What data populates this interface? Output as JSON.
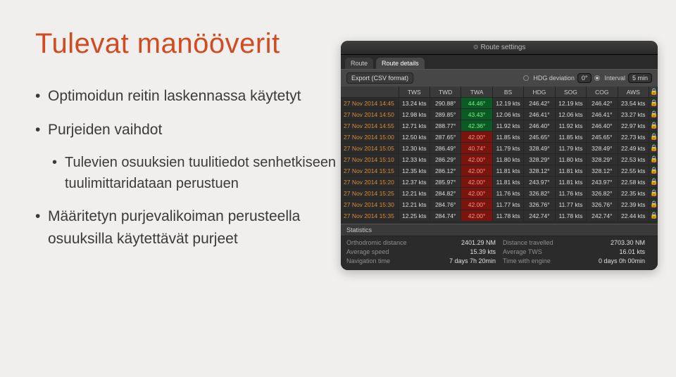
{
  "slide": {
    "title": "Tulevat manööverit",
    "bullets": [
      {
        "text": "Optimoidun reitin laskennassa käytetyt",
        "level": 0
      },
      {
        "text": "Purjeiden vaihdot",
        "level": 0
      },
      {
        "text": "Tulevien osuuksien tuulitiedot senhetkiseen tuulimittaridataan perustuen",
        "level": 1
      },
      {
        "text": "Määritetyn purjevalikoiman perusteella osuuksilla käytettävät purjeet",
        "level": 0
      }
    ]
  },
  "panel": {
    "windowTitle": "Route settings",
    "tabs": [
      "Route",
      "Route details"
    ],
    "activeTab": 1,
    "export_btn": "Export (CSV format)",
    "hdg_label": "HDG deviation",
    "hdg_value": "0°",
    "interval_label": "Interval",
    "interval_value": "5 min",
    "columns": [
      "",
      "TWS",
      "TWD",
      "TWA",
      "BS",
      "HDG",
      "SOG",
      "COG",
      "AWS",
      ""
    ],
    "bs_colors": {
      "green": "#2aa84a",
      "red": "#e03127",
      "bg_green": "#0a5a23",
      "bg_red": "#7a140e"
    },
    "rows": [
      {
        "time": "27 Nov 2014 14:45",
        "tws": "13.24 kts",
        "twd": "290.88°",
        "twa": "44.46°",
        "bs": "12.19 kts",
        "bs_k": "green",
        "hdg": "246.42°",
        "sog": "12.19 kts",
        "cog": "246.42°",
        "aws": "23.54 kts"
      },
      {
        "time": "27 Nov 2014 14:50",
        "tws": "12.98 kts",
        "twd": "289.85°",
        "twa": "43.43°",
        "bs": "12.06 kts",
        "bs_k": "green",
        "hdg": "246.41°",
        "sog": "12.06 kts",
        "cog": "246.41°",
        "aws": "23.27 kts"
      },
      {
        "time": "27 Nov 2014 14:55",
        "tws": "12.71 kts",
        "twd": "288.77°",
        "twa": "42.36°",
        "bs": "11.92 kts",
        "bs_k": "green",
        "hdg": "246.40°",
        "sog": "11.92 kts",
        "cog": "246.40°",
        "aws": "22.97 kts"
      },
      {
        "time": "27 Nov 2014 15:00",
        "tws": "12.50 kts",
        "twd": "287.65°",
        "twa": "42.00°",
        "bs": "11.85 kts",
        "bs_k": "red",
        "hdg": "245.65°",
        "sog": "11.85 kts",
        "cog": "245.65°",
        "aws": "22.73 kts"
      },
      {
        "time": "27 Nov 2014 15:05",
        "tws": "12.30 kts",
        "twd": "286.49°",
        "twa": "40.74°",
        "bs": "11.79 kts",
        "bs_k": "red",
        "hdg": "328.49°",
        "sog": "11.79 kts",
        "cog": "328.49°",
        "aws": "22.49 kts"
      },
      {
        "time": "27 Nov 2014 15:10",
        "tws": "12.33 kts",
        "twd": "286.29°",
        "twa": "42.00°",
        "bs": "11.80 kts",
        "bs_k": "red",
        "hdg": "328.29°",
        "sog": "11.80 kts",
        "cog": "328.29°",
        "aws": "22.53 kts"
      },
      {
        "time": "27 Nov 2014 15:15",
        "tws": "12.35 kts",
        "twd": "286.12°",
        "twa": "42.00°",
        "bs": "11.81 kts",
        "bs_k": "red",
        "hdg": "328.12°",
        "sog": "11.81 kts",
        "cog": "328.12°",
        "aws": "22.55 kts"
      },
      {
        "time": "27 Nov 2014 15:20",
        "tws": "12.37 kts",
        "twd": "285.97°",
        "twa": "42.00°",
        "bs": "11.81 kts",
        "bs_k": "red",
        "hdg": "243.97°",
        "sog": "11.81 kts",
        "cog": "243.97°",
        "aws": "22.58 kts"
      },
      {
        "time": "27 Nov 2014 15:25",
        "tws": "12.21 kts",
        "twd": "284.82°",
        "twa": "42.00°",
        "bs": "11.76 kts",
        "bs_k": "red",
        "hdg": "326.82°",
        "sog": "11.76 kts",
        "cog": "326.82°",
        "aws": "22.35 kts"
      },
      {
        "time": "27 Nov 2014 15:30",
        "tws": "12.21 kts",
        "twd": "284.76°",
        "twa": "42.00°",
        "bs": "11.77 kts",
        "bs_k": "red",
        "hdg": "326.76°",
        "sog": "11.77 kts",
        "cog": "326.76°",
        "aws": "22.39 kts"
      },
      {
        "time": "27 Nov 2014 15:35",
        "tws": "12.25 kts",
        "twd": "284.74°",
        "twa": "42.00°",
        "bs": "11.78 kts",
        "bs_k": "red",
        "hdg": "242.74°",
        "sog": "11.78 kts",
        "cog": "242.74°",
        "aws": "22.44 kts"
      }
    ],
    "stats_header": "Statistics",
    "stats": [
      {
        "label": "Orthodromic distance",
        "value": "2401.29 NM",
        "label2": "Distance travelled",
        "value2": "2703.30 NM"
      },
      {
        "label": "Average speed",
        "value": "15.39 kts",
        "label2": "Average TWS",
        "value2": "16.01 kts"
      },
      {
        "label": "Navigation time",
        "value": "7 days 7h 20min",
        "label2": "Time with engine",
        "value2": "0 days 0h 00min"
      }
    ]
  },
  "colors": {
    "title": "#d24a1f",
    "text": "#3a3a3a",
    "panel_bg": "#2a2a2a",
    "row_time": "#d88b3a"
  }
}
